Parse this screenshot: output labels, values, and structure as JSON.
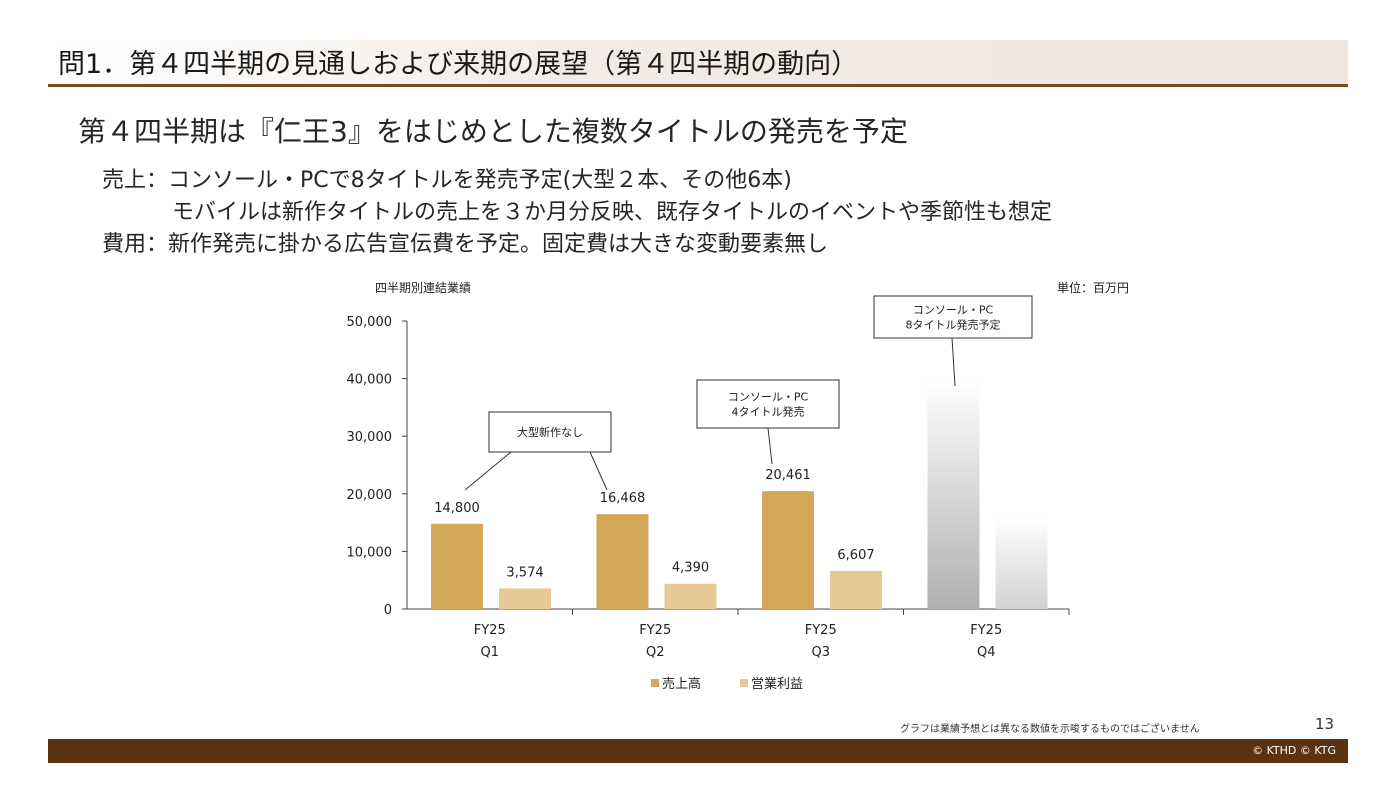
{
  "slide": {
    "title": "問1．第４四半期の見通しおよび来期の展望（第４四半期の動向）",
    "headline": "第４四半期は『仁王3』をはじめとした複数タイトルの発売を予定",
    "line1": "売上：コンソール・PCで8タイトルを発売予定(大型２本、その他6本)",
    "line2": "モバイルは新作タイトルの売上を３か月分反映、既存タイトルのイベントや季節性も想定",
    "line3": "費用：新作発売に掛かる広告宣伝費を予定。固定費は大きな変動要素無し",
    "note": "グラフは業績予想とは異なる数値を示唆するものではございません",
    "page_number": "13",
    "copyright": "© KTHD © KTG"
  },
  "chart_data": {
    "type": "bar",
    "title": "四半期別連結業績",
    "unit": "単位：百万円",
    "ylim": [
      0,
      50000
    ],
    "yticks": [
      "50,000",
      "40,000",
      "30,000",
      "20,000",
      "10,000",
      "0"
    ],
    "ytick_values": [
      50000,
      40000,
      30000,
      20000,
      10000,
      0
    ],
    "categories": [
      {
        "year": "FY25",
        "quarter": "Q1"
      },
      {
        "year": "FY25",
        "quarter": "Q2"
      },
      {
        "year": "FY25",
        "quarter": "Q3"
      },
      {
        "year": "FY25",
        "quarter": "Q4"
      }
    ],
    "series": [
      {
        "name": "売上高",
        "color": "#d4a85a",
        "values": [
          14800,
          16468,
          20461,
          40000
        ],
        "labels": [
          "14,800",
          "16,468",
          "20,461",
          ""
        ]
      },
      {
        "name": "営業利益",
        "color": "#e8c996",
        "values": [
          3574,
          4390,
          6607,
          16000
        ],
        "labels": [
          "3,574",
          "4,390",
          "6,607",
          ""
        ]
      }
    ],
    "forecast_colors": [
      "#b0b0b0",
      "#d2d2d2"
    ],
    "legend_position": "bottom",
    "grid": false,
    "annotations": [
      {
        "lines": [
          "大型新作なし"
        ]
      },
      {
        "lines": [
          "コンソール・PC",
          "4タイトル発売"
        ]
      },
      {
        "lines": [
          "コンソール・PC",
          "8タイトル発売予定"
        ]
      }
    ]
  }
}
